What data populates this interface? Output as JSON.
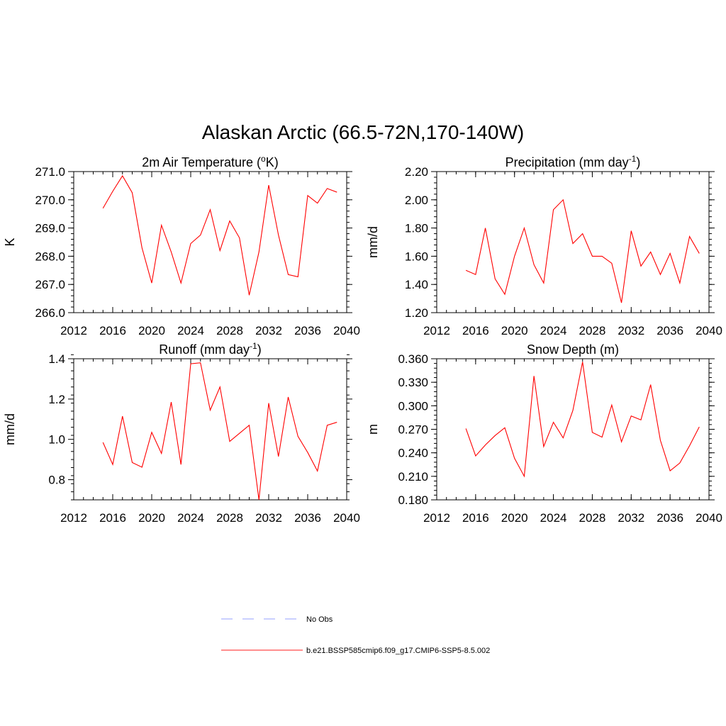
{
  "figure": {
    "title": "Alaskan Arctic (66.5-72N,170-140W)"
  },
  "chart_data": [
    {
      "type": "line",
      "title": "2m Air Temperature (°K)",
      "title_parts": {
        "pre": "2m Air Temperature (",
        "sup": "o",
        "post": "K)"
      },
      "xlabel": "",
      "ylabel": "K",
      "xlim": [
        2012,
        2040
      ],
      "ylim": [
        266.0,
        271.0
      ],
      "xticks": [
        2012,
        2016,
        2020,
        2024,
        2028,
        2032,
        2036,
        2040
      ],
      "yticks": [
        266.0,
        267.0,
        268.0,
        269.0,
        270.0,
        271.0
      ],
      "ytick_decimals": 1,
      "minor_x_step": 1,
      "minor_y_step": 0.2,
      "grid": false,
      "color": "#ff0000",
      "series": [
        {
          "x": [
            2015,
            2016,
            2017,
            2018,
            2019,
            2020,
            2021,
            2022,
            2023,
            2024,
            2025,
            2026,
            2027,
            2028,
            2029,
            2030,
            2031,
            2032,
            2033,
            2034,
            2035,
            2036,
            2037,
            2038,
            2039
          ],
          "y": [
            269.7,
            270.3,
            270.85,
            270.25,
            268.3,
            267.05,
            269.1,
            268.15,
            267.05,
            268.45,
            268.75,
            269.65,
            268.2,
            269.25,
            268.65,
            266.62,
            268.15,
            270.52,
            268.75,
            267.35,
            267.27,
            270.15,
            269.88,
            270.4,
            270.27
          ]
        }
      ]
    },
    {
      "type": "line",
      "title": "Precipitation (mm day⁻¹)",
      "title_parts": {
        "pre": "Precipitation (mm day",
        "sup": "-1",
        "post": ")"
      },
      "xlabel": "",
      "ylabel": "mm/d",
      "xlim": [
        2012,
        2040
      ],
      "ylim": [
        1.2,
        2.2
      ],
      "xticks": [
        2012,
        2016,
        2020,
        2024,
        2028,
        2032,
        2036,
        2040
      ],
      "yticks": [
        1.2,
        1.4,
        1.6,
        1.8,
        2.0,
        2.2
      ],
      "ytick_decimals": 2,
      "minor_x_step": 1,
      "minor_y_step": 0.04,
      "grid": false,
      "color": "#ff0000",
      "series": [
        {
          "x": [
            2015,
            2016,
            2017,
            2018,
            2019,
            2020,
            2021,
            2022,
            2023,
            2024,
            2025,
            2026,
            2027,
            2028,
            2029,
            2030,
            2031,
            2032,
            2033,
            2034,
            2035,
            2036,
            2037,
            2038,
            2039
          ],
          "y": [
            1.5,
            1.47,
            1.8,
            1.44,
            1.33,
            1.6,
            1.8,
            1.54,
            1.41,
            1.93,
            2.0,
            1.69,
            1.76,
            1.6,
            1.6,
            1.55,
            1.27,
            1.78,
            1.53,
            1.63,
            1.47,
            1.62,
            1.41,
            1.74,
            1.62
          ]
        }
      ]
    },
    {
      "type": "line",
      "title": "Runoff (mm day⁻¹)",
      "title_parts": {
        "pre": "Runoff (mm day",
        "sup": "-1",
        "post": ")"
      },
      "xlabel": "",
      "ylabel": "mm/d",
      "xlim": [
        2012,
        2040
      ],
      "ylim": [
        0.7,
        1.4
      ],
      "xticks": [
        2012,
        2016,
        2020,
        2024,
        2028,
        2032,
        2036,
        2040
      ],
      "yticks": [
        0.8,
        1.0,
        1.2,
        1.4
      ],
      "ytick_decimals": 1,
      "minor_x_step": 1,
      "minor_y_step": 0.04,
      "grid": false,
      "color": "#ff0000",
      "series": [
        {
          "x": [
            2015,
            2016,
            2017,
            2018,
            2019,
            2020,
            2021,
            2022,
            2023,
            2024,
            2025,
            2026,
            2027,
            2028,
            2029,
            2030,
            2031,
            2032,
            2033,
            2034,
            2035,
            2036,
            2037,
            2038,
            2039
          ],
          "y": [
            0.985,
            0.875,
            1.115,
            0.885,
            0.862,
            1.035,
            0.93,
            1.185,
            0.875,
            1.375,
            1.38,
            1.145,
            1.26,
            0.99,
            1.03,
            1.07,
            0.7,
            1.18,
            0.915,
            1.21,
            1.015,
            0.935,
            0.843,
            1.07,
            1.085
          ]
        }
      ]
    },
    {
      "type": "line",
      "title": "Snow Depth (m)",
      "title_parts": {
        "pre": "Snow Depth (m)",
        "sup": "",
        "post": ""
      },
      "xlabel": "",
      "ylabel": "m",
      "xlim": [
        2012,
        2040
      ],
      "ylim": [
        0.18,
        0.36
      ],
      "xticks": [
        2012,
        2016,
        2020,
        2024,
        2028,
        2032,
        2036,
        2040
      ],
      "yticks": [
        0.18,
        0.21,
        0.24,
        0.27,
        0.3,
        0.33,
        0.36
      ],
      "ytick_decimals": 3,
      "minor_x_step": 1,
      "minor_y_step": 0.006,
      "grid": false,
      "color": "#ff0000",
      "series": [
        {
          "x": [
            2015,
            2016,
            2017,
            2018,
            2019,
            2020,
            2021,
            2022,
            2023,
            2024,
            2025,
            2026,
            2027,
            2028,
            2029,
            2030,
            2031,
            2032,
            2033,
            2034,
            2035,
            2036,
            2037,
            2038,
            2039
          ],
          "y": [
            0.271,
            0.236,
            0.25,
            0.262,
            0.272,
            0.233,
            0.21,
            0.338,
            0.248,
            0.279,
            0.259,
            0.294,
            0.356,
            0.266,
            0.26,
            0.301,
            0.254,
            0.287,
            0.282,
            0.327,
            0.256,
            0.217,
            0.227,
            0.249,
            0.273
          ]
        }
      ]
    }
  ],
  "legend": {
    "placement": "bottom-center",
    "items": [
      {
        "label": "No Obs",
        "color": "#aab3ff",
        "dash": true
      },
      {
        "label": "b.e21.BSSP585cmip6.f09_g17.CMIP6-SSP5-8.5.002",
        "color": "#ff4a4a",
        "dash": false
      }
    ]
  }
}
